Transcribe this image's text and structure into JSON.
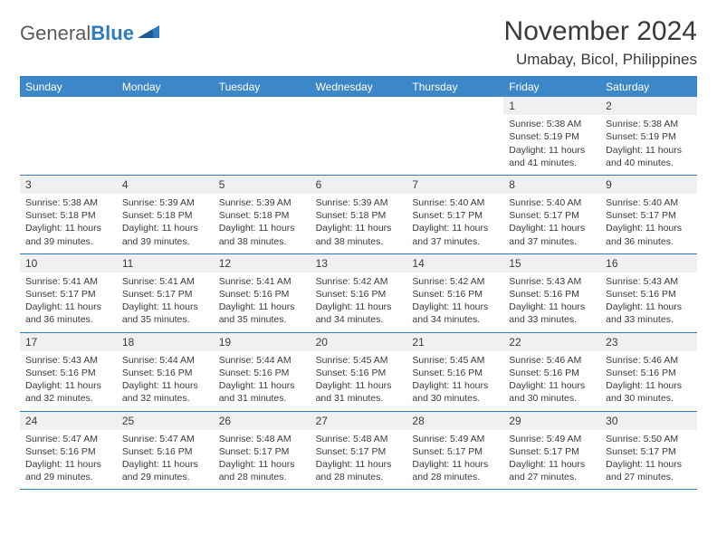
{
  "brand": {
    "name_part1": "General",
    "name_part2": "Blue"
  },
  "title": "November 2024",
  "location": "Umabay, Bicol, Philippines",
  "colors": {
    "header_bg": "#3b87c8",
    "border": "#2f7bbf",
    "daynum_bg": "#eef0f2",
    "text": "#3a3a3a",
    "page_bg": "#ffffff"
  },
  "weekdays": [
    "Sunday",
    "Monday",
    "Tuesday",
    "Wednesday",
    "Thursday",
    "Friday",
    "Saturday"
  ],
  "weeks": [
    [
      {
        "empty": true
      },
      {
        "empty": true
      },
      {
        "empty": true
      },
      {
        "empty": true
      },
      {
        "empty": true
      },
      {
        "day": "1",
        "sunrise": "Sunrise: 5:38 AM",
        "sunset": "Sunset: 5:19 PM",
        "daylight1": "Daylight: 11 hours",
        "daylight2": "and 41 minutes."
      },
      {
        "day": "2",
        "sunrise": "Sunrise: 5:38 AM",
        "sunset": "Sunset: 5:19 PM",
        "daylight1": "Daylight: 11 hours",
        "daylight2": "and 40 minutes."
      }
    ],
    [
      {
        "day": "3",
        "sunrise": "Sunrise: 5:38 AM",
        "sunset": "Sunset: 5:18 PM",
        "daylight1": "Daylight: 11 hours",
        "daylight2": "and 39 minutes."
      },
      {
        "day": "4",
        "sunrise": "Sunrise: 5:39 AM",
        "sunset": "Sunset: 5:18 PM",
        "daylight1": "Daylight: 11 hours",
        "daylight2": "and 39 minutes."
      },
      {
        "day": "5",
        "sunrise": "Sunrise: 5:39 AM",
        "sunset": "Sunset: 5:18 PM",
        "daylight1": "Daylight: 11 hours",
        "daylight2": "and 38 minutes."
      },
      {
        "day": "6",
        "sunrise": "Sunrise: 5:39 AM",
        "sunset": "Sunset: 5:18 PM",
        "daylight1": "Daylight: 11 hours",
        "daylight2": "and 38 minutes."
      },
      {
        "day": "7",
        "sunrise": "Sunrise: 5:40 AM",
        "sunset": "Sunset: 5:17 PM",
        "daylight1": "Daylight: 11 hours",
        "daylight2": "and 37 minutes."
      },
      {
        "day": "8",
        "sunrise": "Sunrise: 5:40 AM",
        "sunset": "Sunset: 5:17 PM",
        "daylight1": "Daylight: 11 hours",
        "daylight2": "and 37 minutes."
      },
      {
        "day": "9",
        "sunrise": "Sunrise: 5:40 AM",
        "sunset": "Sunset: 5:17 PM",
        "daylight1": "Daylight: 11 hours",
        "daylight2": "and 36 minutes."
      }
    ],
    [
      {
        "day": "10",
        "sunrise": "Sunrise: 5:41 AM",
        "sunset": "Sunset: 5:17 PM",
        "daylight1": "Daylight: 11 hours",
        "daylight2": "and 36 minutes."
      },
      {
        "day": "11",
        "sunrise": "Sunrise: 5:41 AM",
        "sunset": "Sunset: 5:17 PM",
        "daylight1": "Daylight: 11 hours",
        "daylight2": "and 35 minutes."
      },
      {
        "day": "12",
        "sunrise": "Sunrise: 5:41 AM",
        "sunset": "Sunset: 5:16 PM",
        "daylight1": "Daylight: 11 hours",
        "daylight2": "and 35 minutes."
      },
      {
        "day": "13",
        "sunrise": "Sunrise: 5:42 AM",
        "sunset": "Sunset: 5:16 PM",
        "daylight1": "Daylight: 11 hours",
        "daylight2": "and 34 minutes."
      },
      {
        "day": "14",
        "sunrise": "Sunrise: 5:42 AM",
        "sunset": "Sunset: 5:16 PM",
        "daylight1": "Daylight: 11 hours",
        "daylight2": "and 34 minutes."
      },
      {
        "day": "15",
        "sunrise": "Sunrise: 5:43 AM",
        "sunset": "Sunset: 5:16 PM",
        "daylight1": "Daylight: 11 hours",
        "daylight2": "and 33 minutes."
      },
      {
        "day": "16",
        "sunrise": "Sunrise: 5:43 AM",
        "sunset": "Sunset: 5:16 PM",
        "daylight1": "Daylight: 11 hours",
        "daylight2": "and 33 minutes."
      }
    ],
    [
      {
        "day": "17",
        "sunrise": "Sunrise: 5:43 AM",
        "sunset": "Sunset: 5:16 PM",
        "daylight1": "Daylight: 11 hours",
        "daylight2": "and 32 minutes."
      },
      {
        "day": "18",
        "sunrise": "Sunrise: 5:44 AM",
        "sunset": "Sunset: 5:16 PM",
        "daylight1": "Daylight: 11 hours",
        "daylight2": "and 32 minutes."
      },
      {
        "day": "19",
        "sunrise": "Sunrise: 5:44 AM",
        "sunset": "Sunset: 5:16 PM",
        "daylight1": "Daylight: 11 hours",
        "daylight2": "and 31 minutes."
      },
      {
        "day": "20",
        "sunrise": "Sunrise: 5:45 AM",
        "sunset": "Sunset: 5:16 PM",
        "daylight1": "Daylight: 11 hours",
        "daylight2": "and 31 minutes."
      },
      {
        "day": "21",
        "sunrise": "Sunrise: 5:45 AM",
        "sunset": "Sunset: 5:16 PM",
        "daylight1": "Daylight: 11 hours",
        "daylight2": "and 30 minutes."
      },
      {
        "day": "22",
        "sunrise": "Sunrise: 5:46 AM",
        "sunset": "Sunset: 5:16 PM",
        "daylight1": "Daylight: 11 hours",
        "daylight2": "and 30 minutes."
      },
      {
        "day": "23",
        "sunrise": "Sunrise: 5:46 AM",
        "sunset": "Sunset: 5:16 PM",
        "daylight1": "Daylight: 11 hours",
        "daylight2": "and 30 minutes."
      }
    ],
    [
      {
        "day": "24",
        "sunrise": "Sunrise: 5:47 AM",
        "sunset": "Sunset: 5:16 PM",
        "daylight1": "Daylight: 11 hours",
        "daylight2": "and 29 minutes."
      },
      {
        "day": "25",
        "sunrise": "Sunrise: 5:47 AM",
        "sunset": "Sunset: 5:16 PM",
        "daylight1": "Daylight: 11 hours",
        "daylight2": "and 29 minutes."
      },
      {
        "day": "26",
        "sunrise": "Sunrise: 5:48 AM",
        "sunset": "Sunset: 5:17 PM",
        "daylight1": "Daylight: 11 hours",
        "daylight2": "and 28 minutes."
      },
      {
        "day": "27",
        "sunrise": "Sunrise: 5:48 AM",
        "sunset": "Sunset: 5:17 PM",
        "daylight1": "Daylight: 11 hours",
        "daylight2": "and 28 minutes."
      },
      {
        "day": "28",
        "sunrise": "Sunrise: 5:49 AM",
        "sunset": "Sunset: 5:17 PM",
        "daylight1": "Daylight: 11 hours",
        "daylight2": "and 28 minutes."
      },
      {
        "day": "29",
        "sunrise": "Sunrise: 5:49 AM",
        "sunset": "Sunset: 5:17 PM",
        "daylight1": "Daylight: 11 hours",
        "daylight2": "and 27 minutes."
      },
      {
        "day": "30",
        "sunrise": "Sunrise: 5:50 AM",
        "sunset": "Sunset: 5:17 PM",
        "daylight1": "Daylight: 11 hours",
        "daylight2": "and 27 minutes."
      }
    ]
  ]
}
